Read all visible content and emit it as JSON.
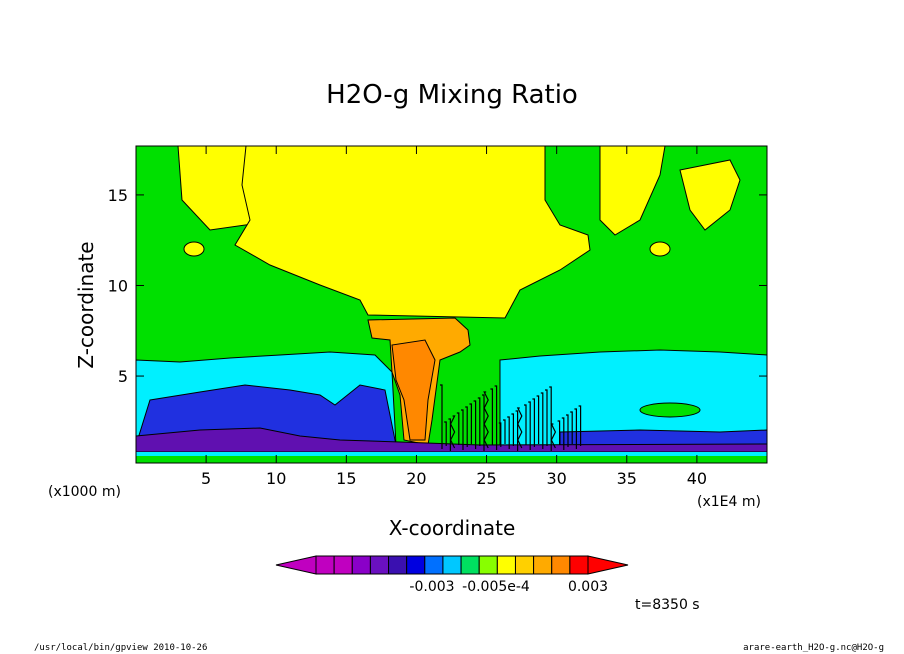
{
  "chart_data": {
    "type": "heatmap",
    "title": "H2O-g Mixing Ratio",
    "xlabel": "X-coordinate",
    "ylabel": "Z-coordinate",
    "x_unit_note": "(x1E4 m)",
    "y_unit_note": "(x1000 m)",
    "x_ticks": [
      5,
      10,
      15,
      20,
      25,
      30,
      35,
      40
    ],
    "y_ticks": [
      5,
      10,
      15
    ],
    "xlim": [
      0,
      45
    ],
    "ylim": [
      0.2,
      17.7
    ],
    "colorbar": {
      "tick_labels": [
        "-0.003",
        "-0.005e-4",
        "0.003"
      ],
      "colors": [
        "#c000c0",
        "#c000c0",
        "#8a00c8",
        "#6a10c0",
        "#3a10b0",
        "#0000e0",
        "#0070ff",
        "#00c8ff",
        "#00e060",
        "#88ff00",
        "#ffff00",
        "#ffd000",
        "#ffaa00",
        "#ff8800",
        "#ff0000"
      ]
    },
    "time_label": "t=8350 s",
    "regions": {
      "background": "#00e000",
      "upper_moist": "#ffff00",
      "core": "#ffaa00",
      "mid_layer": "#00f0ff",
      "low_layer": "#2030e0",
      "surface_layer": "#6010b0"
    }
  },
  "footer": {
    "left": "/usr/local/bin/gpview  2010-10-26",
    "right": "arare-earth_H2O-g.nc@H2O-g"
  }
}
